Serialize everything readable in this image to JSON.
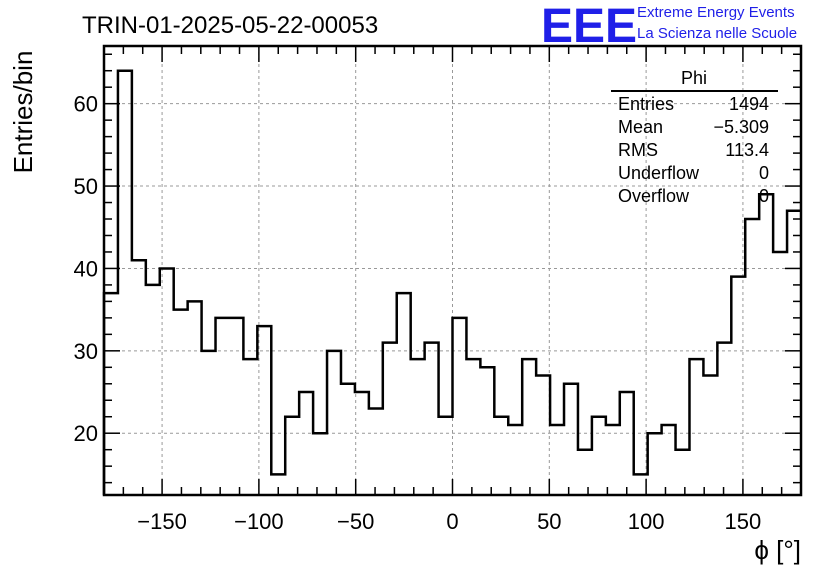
{
  "chart_data": {
    "type": "bar",
    "title": "TRIN-01-2025-05-22-00053",
    "xlabel": "ϕ [°]",
    "ylabel": "Entries/bin",
    "xlim": [
      -180,
      180
    ],
    "ylim": [
      12.5,
      67
    ],
    "x_ticks": [
      -150,
      -100,
      -50,
      0,
      50,
      100,
      150
    ],
    "x_tick_labels": [
      "−150",
      "−100",
      "−50",
      "0",
      "50",
      "100",
      "150"
    ],
    "y_ticks": [
      20,
      30,
      40,
      50,
      60
    ],
    "y_tick_labels": [
      "20",
      "30",
      "40",
      "50",
      "60"
    ],
    "grid": true,
    "bin_width": 7.2,
    "values": [
      37,
      64,
      41,
      38,
      40,
      35,
      36,
      30,
      34,
      34,
      29,
      33,
      15,
      22,
      25,
      20,
      30,
      26,
      25,
      23,
      31,
      37,
      29,
      31,
      22,
      34,
      29,
      28,
      22,
      21,
      29,
      27,
      21,
      26,
      18,
      22,
      21,
      25,
      15,
      20,
      21,
      18,
      29,
      27,
      31,
      39,
      46,
      49,
      42,
      47
    ],
    "stats": {
      "name": "Phi",
      "rows": [
        {
          "label": "Entries",
          "value": "1494"
        },
        {
          "label": "Mean",
          "value": "−5.309"
        },
        {
          "label": "RMS",
          "value": "113.4"
        },
        {
          "label": "Underflow",
          "value": "0"
        },
        {
          "label": "Overflow",
          "value": "0"
        }
      ]
    }
  },
  "logo": {
    "mark": "EEE",
    "line1": "Extreme Energy Events",
    "line2": "La Scienza nelle Scuole",
    "color": "#1f1fe8"
  }
}
